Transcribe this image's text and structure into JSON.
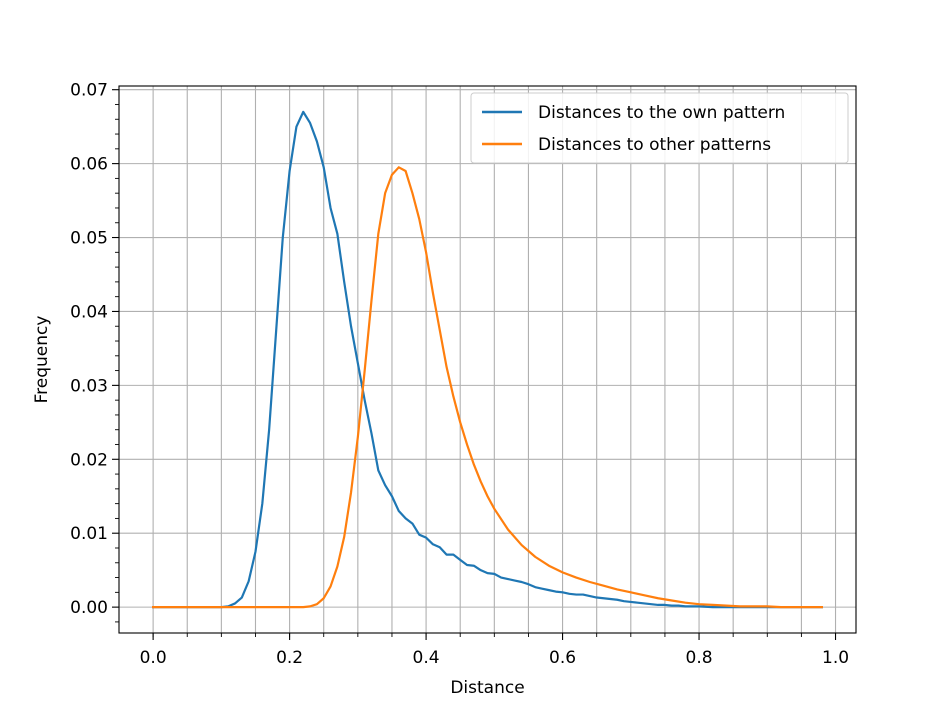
{
  "chart_data": {
    "type": "line",
    "title": "",
    "xlabel": "Distance",
    "ylabel": "Frequency",
    "xlim": [
      -0.05,
      1.03
    ],
    "ylim": [
      -0.0035,
      0.0705
    ],
    "xticks": [
      0.0,
      0.2,
      0.4,
      0.6,
      0.8,
      1.0
    ],
    "xtick_labels": [
      "0.0",
      "0.2",
      "0.4",
      "0.6",
      "0.8",
      "1.0"
    ],
    "yticks": [
      0.0,
      0.01,
      0.02,
      0.03,
      0.04,
      0.05,
      0.06,
      0.07
    ],
    "ytick_labels": [
      "0.00",
      "0.01",
      "0.02",
      "0.03",
      "0.04",
      "0.05",
      "0.06",
      "0.07"
    ],
    "x_minor_step": 0.05,
    "y_minor_step": 0.002,
    "grid": true,
    "legend_position": "upper right",
    "series": [
      {
        "name": "Distances to the own pattern",
        "color": "#1f77b4",
        "x": [
          0.0,
          0.01,
          0.02,
          0.03,
          0.04,
          0.05,
          0.06,
          0.07,
          0.08,
          0.09,
          0.1,
          0.11,
          0.12,
          0.13,
          0.14,
          0.15,
          0.16,
          0.17,
          0.18,
          0.19,
          0.2,
          0.21,
          0.22,
          0.23,
          0.24,
          0.25,
          0.26,
          0.27,
          0.28,
          0.29,
          0.3,
          0.31,
          0.32,
          0.33,
          0.34,
          0.35,
          0.36,
          0.37,
          0.38,
          0.39,
          0.4,
          0.41,
          0.42,
          0.43,
          0.44,
          0.45,
          0.46,
          0.47,
          0.48,
          0.49,
          0.5,
          0.51,
          0.52,
          0.53,
          0.54,
          0.55,
          0.56,
          0.57,
          0.58,
          0.59,
          0.6,
          0.61,
          0.62,
          0.63,
          0.64,
          0.65,
          0.66,
          0.67,
          0.68,
          0.69,
          0.7,
          0.71,
          0.72,
          0.73,
          0.74,
          0.75,
          0.76,
          0.77,
          0.78,
          0.79,
          0.8,
          0.82,
          0.84,
          0.86,
          0.88,
          0.9,
          0.92,
          0.94,
          0.96,
          0.98
        ],
        "y": [
          0.0,
          0.0,
          0.0,
          0.0,
          0.0,
          0.0,
          0.0,
          0.0,
          0.0,
          0.0,
          0.0,
          0.0001,
          0.0005,
          0.0013,
          0.0035,
          0.0075,
          0.014,
          0.024,
          0.037,
          0.05,
          0.059,
          0.065,
          0.067,
          0.0655,
          0.063,
          0.0595,
          0.054,
          0.0505,
          0.044,
          0.038,
          0.033,
          0.028,
          0.0235,
          0.0185,
          0.0165,
          0.015,
          0.013,
          0.012,
          0.0113,
          0.0098,
          0.0094,
          0.0085,
          0.0081,
          0.0071,
          0.0071,
          0.0064,
          0.0057,
          0.0056,
          0.005,
          0.0046,
          0.0045,
          0.004,
          0.0038,
          0.0036,
          0.0034,
          0.0031,
          0.0027,
          0.0025,
          0.0023,
          0.0021,
          0.002,
          0.0018,
          0.0017,
          0.0017,
          0.0015,
          0.0013,
          0.0012,
          0.0011,
          0.001,
          0.0008,
          0.0007,
          0.0006,
          0.0005,
          0.0004,
          0.0003,
          0.0003,
          0.0002,
          0.0002,
          0.0001,
          0.0001,
          0.0001,
          0.0,
          0.0,
          0.0,
          0.0,
          0.0,
          0.0,
          0.0,
          0.0,
          0.0
        ]
      },
      {
        "name": "Distances to other patterns",
        "color": "#ff7f0e",
        "x": [
          0.0,
          0.02,
          0.04,
          0.06,
          0.08,
          0.1,
          0.12,
          0.14,
          0.16,
          0.18,
          0.2,
          0.21,
          0.22,
          0.23,
          0.24,
          0.25,
          0.26,
          0.27,
          0.28,
          0.29,
          0.3,
          0.31,
          0.32,
          0.33,
          0.34,
          0.35,
          0.36,
          0.37,
          0.38,
          0.39,
          0.4,
          0.41,
          0.42,
          0.43,
          0.44,
          0.45,
          0.46,
          0.47,
          0.48,
          0.49,
          0.5,
          0.52,
          0.54,
          0.56,
          0.58,
          0.6,
          0.62,
          0.64,
          0.66,
          0.68,
          0.7,
          0.72,
          0.74,
          0.76,
          0.78,
          0.8,
          0.82,
          0.84,
          0.86,
          0.88,
          0.9,
          0.92,
          0.94,
          0.96,
          0.98
        ],
        "y": [
          0.0,
          0.0,
          0.0,
          0.0,
          0.0,
          0.0,
          0.0,
          0.0,
          0.0,
          0.0,
          0.0,
          0.0,
          0.0,
          0.0001,
          0.0004,
          0.0012,
          0.0028,
          0.0055,
          0.0095,
          0.0155,
          0.023,
          0.032,
          0.0415,
          0.0505,
          0.056,
          0.0585,
          0.0595,
          0.059,
          0.056,
          0.0525,
          0.048,
          0.0425,
          0.0375,
          0.0325,
          0.0285,
          0.025,
          0.022,
          0.0193,
          0.017,
          0.015,
          0.0133,
          0.0105,
          0.0084,
          0.0068,
          0.0056,
          0.0047,
          0.004,
          0.0034,
          0.0029,
          0.0024,
          0.002,
          0.0016,
          0.0012,
          0.0009,
          0.0006,
          0.0004,
          0.0003,
          0.0002,
          0.0001,
          0.0001,
          0.0001,
          0.0,
          0.0,
          0.0,
          0.0
        ]
      }
    ]
  }
}
